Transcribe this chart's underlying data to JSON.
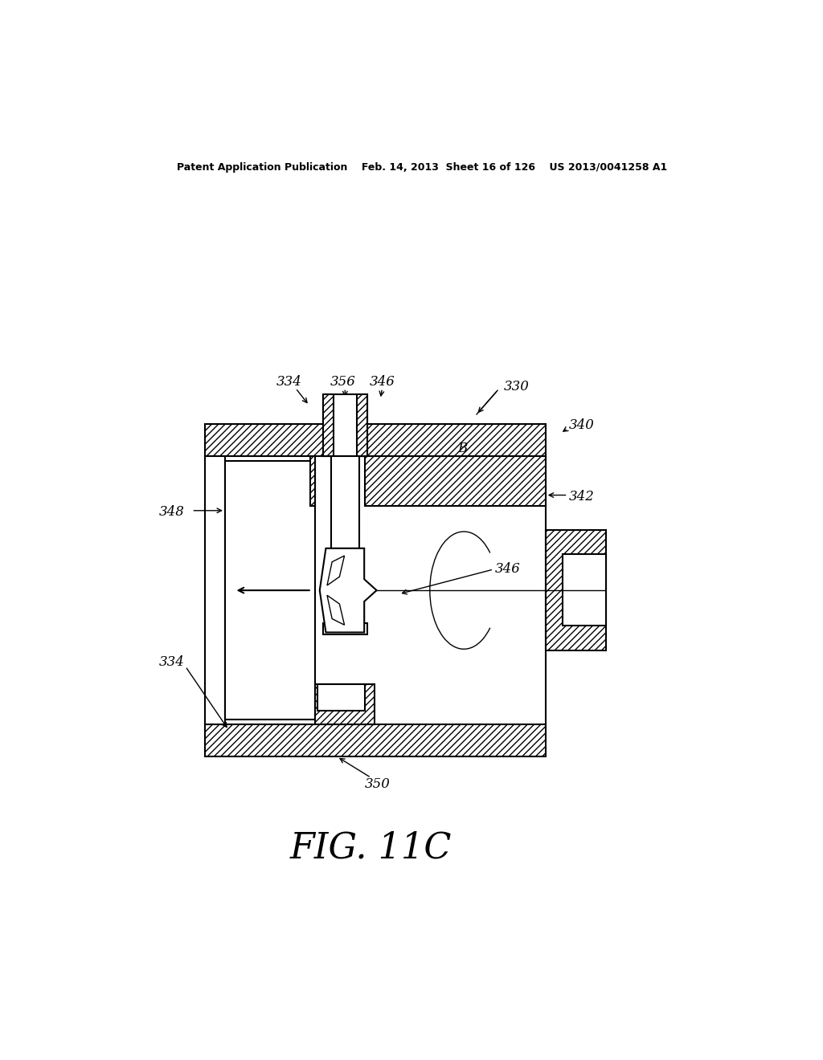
{
  "bg_color": "#ffffff",
  "line_color": "#000000",
  "fig_width": 10.24,
  "fig_height": 13.2,
  "header_text": "Patent Application Publication    Feb. 14, 2013  Sheet 16 of 126    US 2013/0041258 A1",
  "figure_label": "FIG. 11C"
}
